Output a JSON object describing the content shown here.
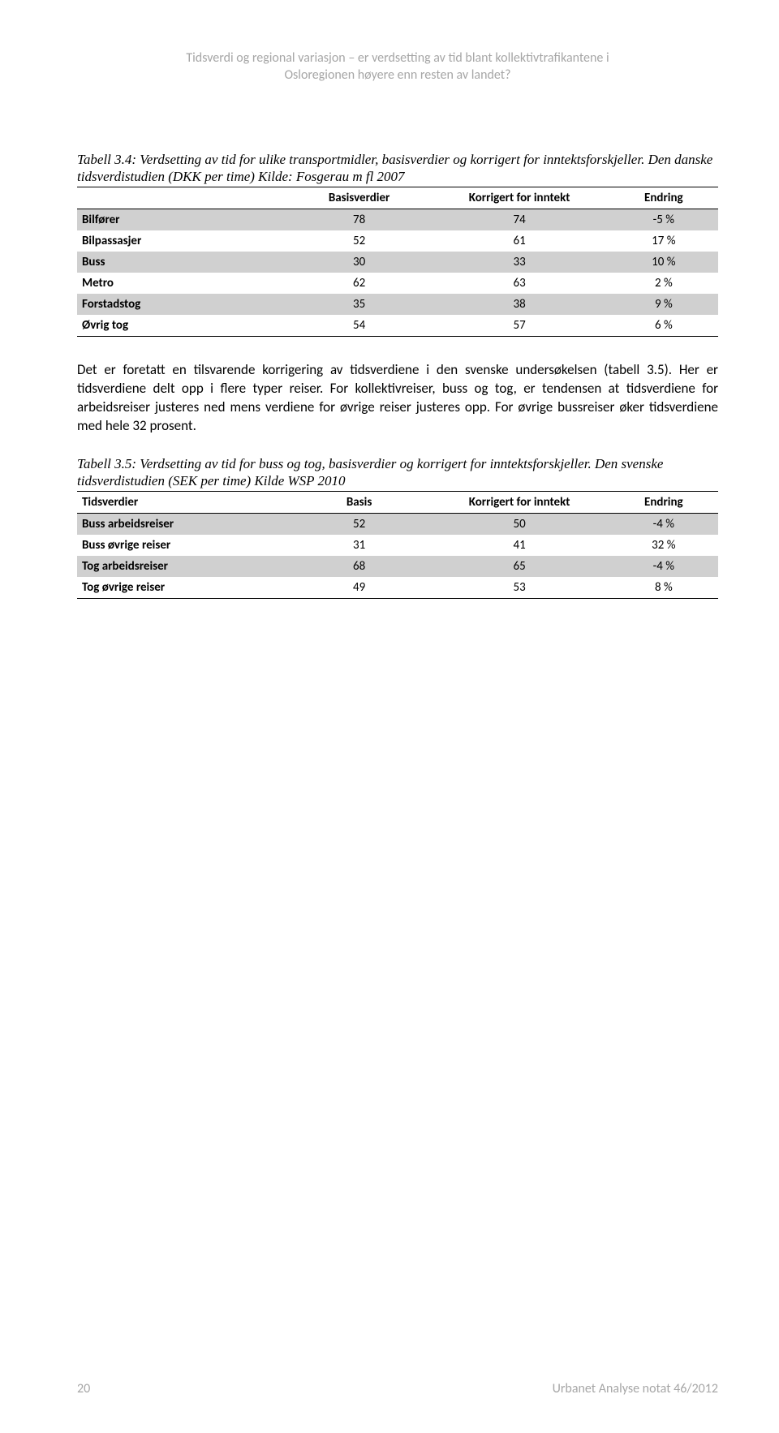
{
  "header": {
    "line1": "Tidsverdi og regional variasjon – er verdsetting av tid blant kollektivtrafikantene i",
    "line2": "Osloregionen høyere enn resten av landet?"
  },
  "caption1": "Tabell 3.4: Verdsetting av tid for ulike transportmidler, basisverdier og korrigert for inntektsforskjeller. Den danske tidsverdistudien (DKK per time) Kilde: Fosgerau m fl 2007",
  "table1": {
    "columns": [
      "",
      "Basisverdier",
      "Korrigert for inntekt",
      "Endring"
    ],
    "rows": [
      {
        "label": "Bilfører",
        "c1": "78",
        "c2": "74",
        "c3": "-5 %",
        "shaded": true
      },
      {
        "label": "Bilpassasjer",
        "c1": "52",
        "c2": "61",
        "c3": "17 %",
        "shaded": false
      },
      {
        "label": "Buss",
        "c1": "30",
        "c2": "33",
        "c3": "10 %",
        "shaded": true
      },
      {
        "label": "Metro",
        "c1": "62",
        "c2": "63",
        "c3": "2 %",
        "shaded": false
      },
      {
        "label": "Forstadstog",
        "c1": "35",
        "c2": "38",
        "c3": "9 %",
        "shaded": true
      },
      {
        "label": "Øvrig tog",
        "c1": "54",
        "c2": "57",
        "c3": "6 %",
        "shaded": false
      }
    ]
  },
  "paragraph": "Det er foretatt en tilsvarende korrigering av tidsverdiene i den svenske undersøkelsen (tabell 3.5). Her er tidsverdiene delt opp i flere typer reiser. For kollektivreiser, buss og tog, er tendensen at tidsverdiene for arbeidsreiser justeres ned mens verdiene for øvrige reiser justeres opp. For øvrige bussreiser øker tidsverdiene med hele 32 prosent.",
  "caption2": "Tabell 3.5: Verdsetting av tid for buss og tog, basisverdier og korrigert for inntektsforskjeller. Den svenske tidsverdistudien (SEK per time) Kilde WSP 2010",
  "table2": {
    "columns": [
      "Tidsverdier",
      "Basis",
      "Korrigert for inntekt",
      "Endring"
    ],
    "rows": [
      {
        "label": "Buss arbeidsreiser",
        "c1": "52",
        "c2": "50",
        "c3": "-4 %",
        "shaded": true
      },
      {
        "label": "Buss øvrige reiser",
        "c1": "31",
        "c2": "41",
        "c3": "32 %",
        "shaded": false
      },
      {
        "label": "Tog arbeidsreiser",
        "c1": "68",
        "c2": "65",
        "c3": "-4 %",
        "shaded": true
      },
      {
        "label": "Tog øvrige reiser",
        "c1": "49",
        "c2": "53",
        "c3": "8 %",
        "shaded": false
      }
    ]
  },
  "footer": {
    "page": "20",
    "note": "Urbanet Analyse notat 46/2012"
  },
  "style": {
    "body_fontsize": 17,
    "table_fontsize": 15,
    "header_color": "#a6a6a6",
    "shaded_bg": "#d0d0d0",
    "border_color": "#000000"
  }
}
